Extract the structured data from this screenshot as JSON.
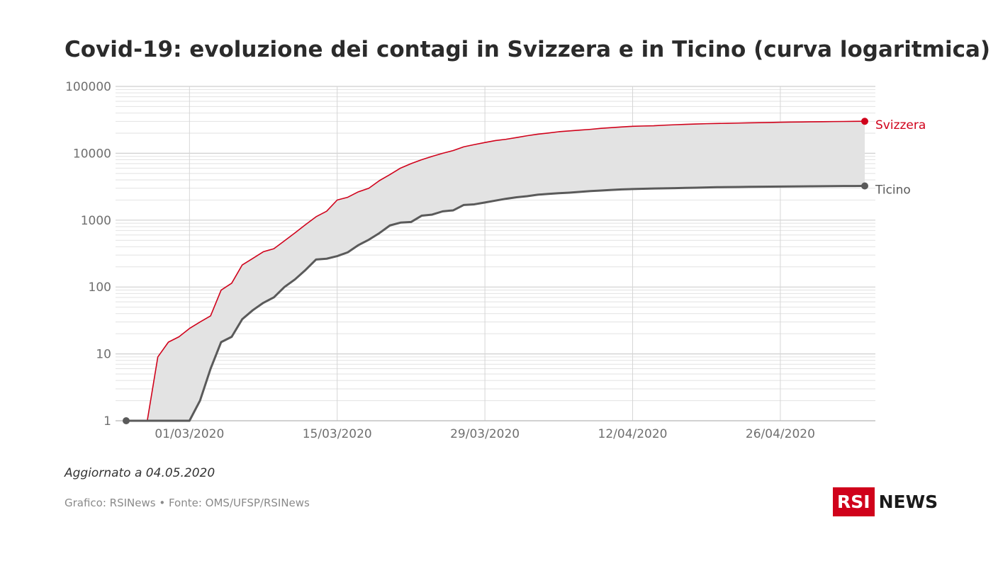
{
  "title": "Covid-19: evoluzione dei contagi in Svizzera e in Ticino (curva logaritmica)",
  "footer": {
    "updated": "Aggiornato a 04.05.2020",
    "source": "Grafico: RSINews • Fonte: OMS/UFSP/RSINews"
  },
  "logo": {
    "rsi": "RSI",
    "news": "NEWS"
  },
  "colors": {
    "svizzera": "#d0021b",
    "ticino": "#5a5a5a",
    "band": "#e3e3e3",
    "grid": "#d9d9d9",
    "axis_text": "#6f6f6f"
  },
  "chart_data": {
    "type": "line",
    "y_scale": "log",
    "ylim": [
      1,
      100000
    ],
    "y_ticks": [
      "1",
      "10",
      "100",
      "1000",
      "10000",
      "100000"
    ],
    "x_range": [
      "2020-02-24",
      "2020-05-04"
    ],
    "x_ticks": [
      {
        "date": "2020-03-01",
        "label": "01/03/2020"
      },
      {
        "date": "2020-03-15",
        "label": "15/03/2020"
      },
      {
        "date": "2020-03-29",
        "label": "29/03/2020"
      },
      {
        "date": "2020-04-12",
        "label": "12/04/2020"
      },
      {
        "date": "2020-04-26",
        "label": "26/04/2020"
      }
    ],
    "grid": true,
    "shaded_between_series": true,
    "series": [
      {
        "name": "Svizzera",
        "points": [
          [
            "2020-02-25",
            1
          ],
          [
            "2020-02-26",
            1
          ],
          [
            "2020-02-27",
            9
          ],
          [
            "2020-02-28",
            15
          ],
          [
            "2020-02-29",
            18
          ],
          [
            "2020-03-01",
            24
          ],
          [
            "2020-03-02",
            30
          ],
          [
            "2020-03-03",
            37
          ],
          [
            "2020-03-04",
            90
          ],
          [
            "2020-03-05",
            114
          ],
          [
            "2020-03-06",
            214
          ],
          [
            "2020-03-07",
            268
          ],
          [
            "2020-03-08",
            337
          ],
          [
            "2020-03-09",
            374
          ],
          [
            "2020-03-10",
            491
          ],
          [
            "2020-03-11",
            645
          ],
          [
            "2020-03-12",
            858
          ],
          [
            "2020-03-13",
            1125
          ],
          [
            "2020-03-14",
            1359
          ],
          [
            "2020-03-15",
            2000
          ],
          [
            "2020-03-16",
            2200
          ],
          [
            "2020-03-17",
            2650
          ],
          [
            "2020-03-18",
            3000
          ],
          [
            "2020-03-19",
            3900
          ],
          [
            "2020-03-20",
            4800
          ],
          [
            "2020-03-21",
            6000
          ],
          [
            "2020-03-22",
            7000
          ],
          [
            "2020-03-23",
            8000
          ],
          [
            "2020-03-24",
            9000
          ],
          [
            "2020-03-25",
            10000
          ],
          [
            "2020-03-26",
            11000
          ],
          [
            "2020-03-27",
            12500
          ],
          [
            "2020-03-28",
            13500
          ],
          [
            "2020-03-29",
            14500
          ],
          [
            "2020-03-30",
            15500
          ],
          [
            "2020-03-31",
            16200
          ],
          [
            "2020-04-01",
            17200
          ],
          [
            "2020-04-02",
            18300
          ],
          [
            "2020-04-03",
            19300
          ],
          [
            "2020-04-04",
            20100
          ],
          [
            "2020-04-05",
            21000
          ],
          [
            "2020-04-06",
            21600
          ],
          [
            "2020-04-07",
            22200
          ],
          [
            "2020-04-08",
            22800
          ],
          [
            "2020-04-09",
            23600
          ],
          [
            "2020-04-10",
            24200
          ],
          [
            "2020-04-11",
            24800
          ],
          [
            "2020-04-12",
            25300
          ],
          [
            "2020-04-13",
            25600
          ],
          [
            "2020-04-14",
            25800
          ],
          [
            "2020-04-15",
            26300
          ],
          [
            "2020-04-16",
            26700
          ],
          [
            "2020-04-17",
            27100
          ],
          [
            "2020-04-18",
            27400
          ],
          [
            "2020-04-19",
            27700
          ],
          [
            "2020-04-20",
            27900
          ],
          [
            "2020-04-21",
            28100
          ],
          [
            "2020-04-22",
            28300
          ],
          [
            "2020-04-23",
            28500
          ],
          [
            "2020-04-24",
            28700
          ],
          [
            "2020-04-25",
            28900
          ],
          [
            "2020-04-26",
            29100
          ],
          [
            "2020-04-27",
            29300
          ],
          [
            "2020-04-28",
            29400
          ],
          [
            "2020-04-29",
            29600
          ],
          [
            "2020-04-30",
            29700
          ],
          [
            "2020-05-01",
            29800
          ],
          [
            "2020-05-02",
            29900
          ],
          [
            "2020-05-03",
            30000
          ],
          [
            "2020-05-04",
            30100
          ]
        ]
      },
      {
        "name": "Ticino",
        "points": [
          [
            "2020-02-24",
            1
          ],
          [
            "2020-02-25",
            1
          ],
          [
            "2020-02-26",
            1
          ],
          [
            "2020-02-27",
            1
          ],
          [
            "2020-02-28",
            1
          ],
          [
            "2020-02-29",
            1
          ],
          [
            "2020-03-01",
            1
          ],
          [
            "2020-03-02",
            2
          ],
          [
            "2020-03-03",
            6
          ],
          [
            "2020-03-04",
            15
          ],
          [
            "2020-03-05",
            18
          ],
          [
            "2020-03-06",
            33
          ],
          [
            "2020-03-07",
            45
          ],
          [
            "2020-03-08",
            58
          ],
          [
            "2020-03-09",
            70
          ],
          [
            "2020-03-10",
            100
          ],
          [
            "2020-03-11",
            130
          ],
          [
            "2020-03-12",
            180
          ],
          [
            "2020-03-13",
            258
          ],
          [
            "2020-03-14",
            265
          ],
          [
            "2020-03-15",
            290
          ],
          [
            "2020-03-16",
            330
          ],
          [
            "2020-03-17",
            422
          ],
          [
            "2020-03-18",
            510
          ],
          [
            "2020-03-19",
            640
          ],
          [
            "2020-03-20",
            834
          ],
          [
            "2020-03-21",
            918
          ],
          [
            "2020-03-22",
            938
          ],
          [
            "2020-03-23",
            1165
          ],
          [
            "2020-03-24",
            1211
          ],
          [
            "2020-03-25",
            1354
          ],
          [
            "2020-03-26",
            1401
          ],
          [
            "2020-03-27",
            1688
          ],
          [
            "2020-03-28",
            1725
          ],
          [
            "2020-03-29",
            1837
          ],
          [
            "2020-03-30",
            1962
          ],
          [
            "2020-03-31",
            2090
          ],
          [
            "2020-04-01",
            2200
          ],
          [
            "2020-04-02",
            2280
          ],
          [
            "2020-04-03",
            2400
          ],
          [
            "2020-04-04",
            2470
          ],
          [
            "2020-04-05",
            2530
          ],
          [
            "2020-04-06",
            2580
          ],
          [
            "2020-04-07",
            2650
          ],
          [
            "2020-04-08",
            2720
          ],
          [
            "2020-04-09",
            2770
          ],
          [
            "2020-04-10",
            2830
          ],
          [
            "2020-04-11",
            2880
          ],
          [
            "2020-04-12",
            2920
          ],
          [
            "2020-04-13",
            2950
          ],
          [
            "2020-04-14",
            2970
          ],
          [
            "2020-04-15",
            2990
          ],
          [
            "2020-04-16",
            3010
          ],
          [
            "2020-04-17",
            3040
          ],
          [
            "2020-04-18",
            3060
          ],
          [
            "2020-04-19",
            3080
          ],
          [
            "2020-04-20",
            3110
          ],
          [
            "2020-04-21",
            3120
          ],
          [
            "2020-04-22",
            3130
          ],
          [
            "2020-04-23",
            3150
          ],
          [
            "2020-04-24",
            3160
          ],
          [
            "2020-04-25",
            3170
          ],
          [
            "2020-04-26",
            3180
          ],
          [
            "2020-04-27",
            3190
          ],
          [
            "2020-04-28",
            3200
          ],
          [
            "2020-04-29",
            3210
          ],
          [
            "2020-04-30",
            3220
          ],
          [
            "2020-05-01",
            3230
          ],
          [
            "2020-05-02",
            3235
          ],
          [
            "2020-05-03",
            3240
          ],
          [
            "2020-05-04",
            3250
          ]
        ]
      }
    ]
  }
}
